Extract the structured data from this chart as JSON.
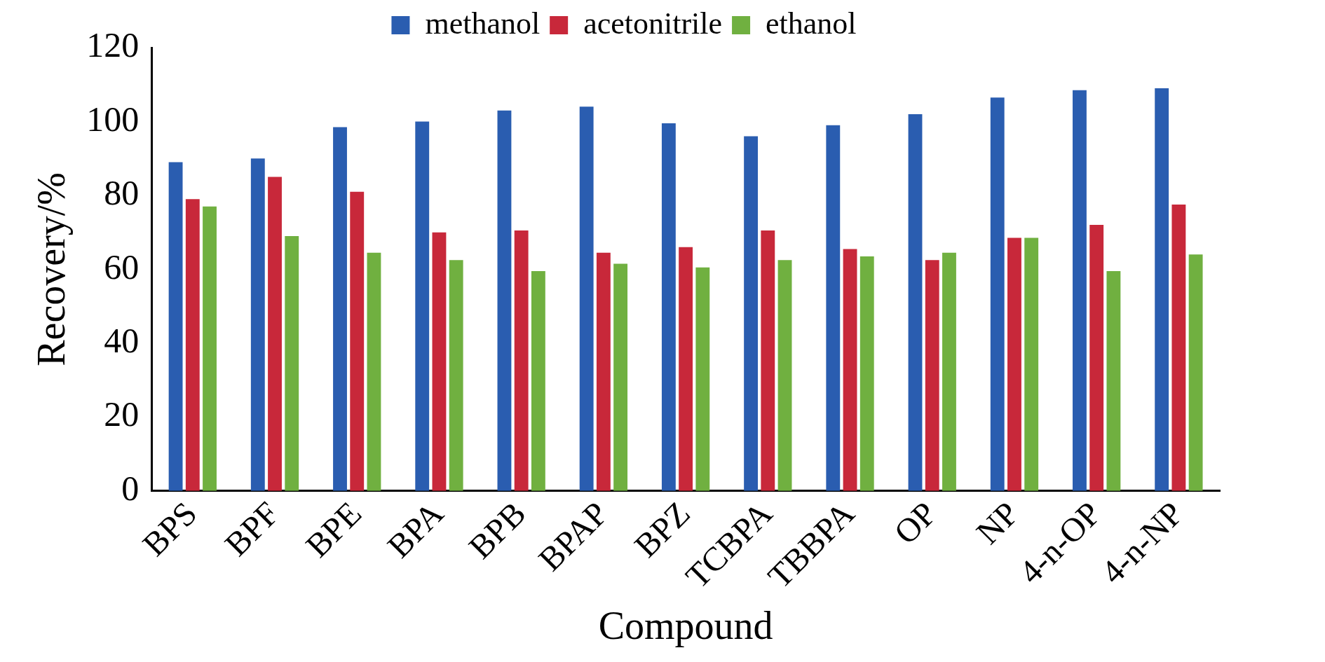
{
  "chart_data": {
    "type": "bar",
    "xlabel": "Compound",
    "ylabel": "Recovery/%",
    "categories": [
      "BPS",
      "BPF",
      "BPE",
      "BPA",
      "BPB",
      "BPAP",
      "BPZ",
      "TCBPA",
      "TBBPA",
      "OP",
      "NP",
      "4-n-OP",
      "4-n-NP"
    ],
    "series": [
      {
        "name": "methanol",
        "color": "#2a5db0",
        "values": [
          89,
          90,
          98.5,
          100,
          103,
          104,
          99.5,
          96,
          99,
          102,
          106.5,
          108.5,
          109
        ]
      },
      {
        "name": "acetonitrile",
        "color": "#c8283a",
        "values": [
          79,
          85,
          81,
          70,
          70.5,
          64.5,
          66,
          70.5,
          65.5,
          62.5,
          68.5,
          72,
          77.5
        ]
      },
      {
        "name": "ethanol",
        "color": "#70b040",
        "values": [
          77,
          69,
          64.5,
          62.5,
          59.5,
          61.5,
          60.5,
          62.5,
          63.5,
          64.5,
          68.5,
          59.5,
          64
        ]
      }
    ],
    "ylim": [
      0,
      120
    ],
    "yticks": [
      0,
      20,
      40,
      60,
      80,
      100,
      120
    ],
    "grid": false,
    "legend": "top"
  }
}
